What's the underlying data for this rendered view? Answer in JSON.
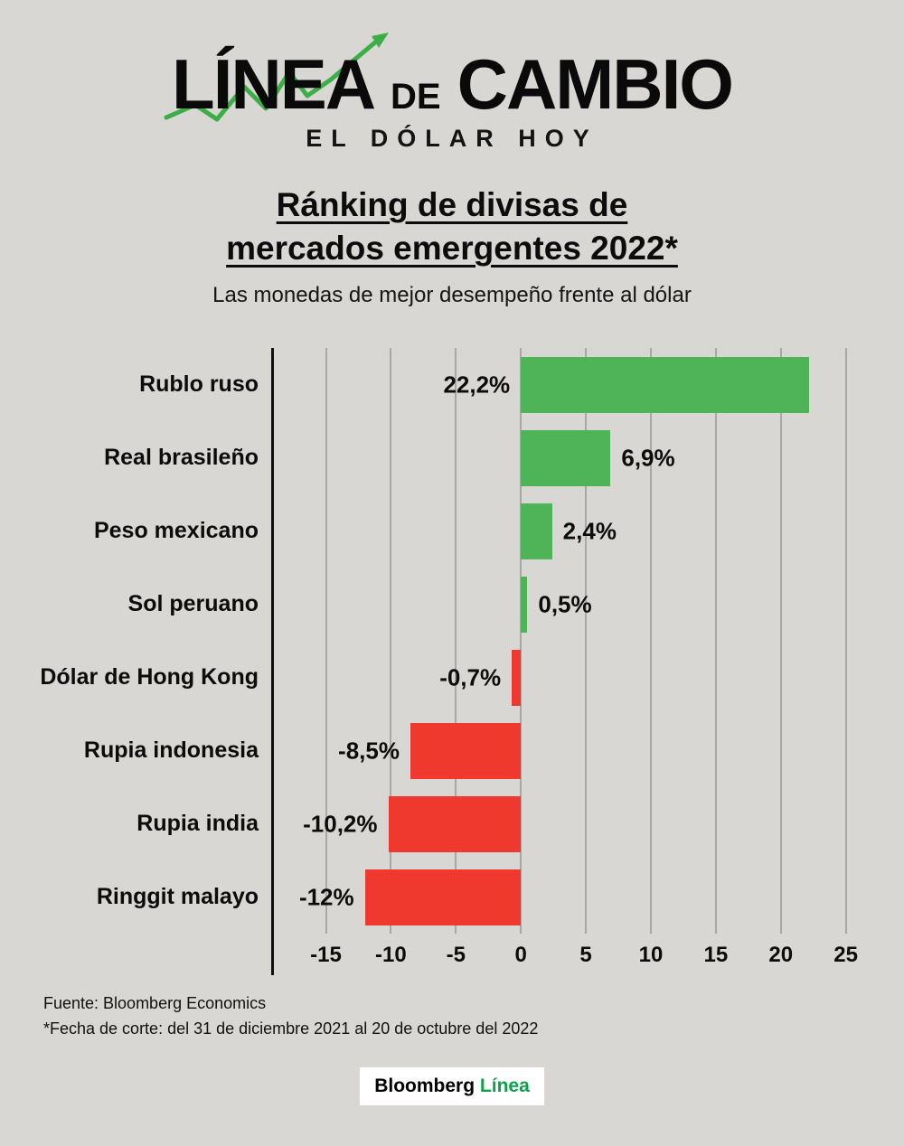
{
  "colors": {
    "background": "#d8d7d4",
    "positive": "#4fb357",
    "negative": "#f0392e",
    "axis": "#101010",
    "grid": "#a8a8a5",
    "logo_green": "#3cae47",
    "badge_green": "#0ca24b"
  },
  "logo": {
    "word1": "LÍNEA",
    "word2": "DE",
    "word3": "CAMBIO",
    "tagline": "EL DÓLAR HOY"
  },
  "title_line1": "Ránking de divisas de",
  "title_line2": "mercados emergentes 2022*",
  "subtitle": "Las monedas de mejor desempeño frente al dólar",
  "chart_data": {
    "type": "bar",
    "orientation": "horizontal",
    "title": "Ránking de divisas de mercados emergentes 2022*",
    "subtitle": "Las monedas de mejor desempeño frente al dólar",
    "categories": [
      "Rublo ruso",
      "Real brasileño",
      "Peso mexicano",
      "Sol peruano",
      "Dólar de Hong Kong",
      "Rupia indonesia",
      "Rupia india",
      "Ringgit malayo"
    ],
    "values": [
      22.2,
      6.9,
      2.4,
      0.5,
      -0.7,
      -8.5,
      -10.2,
      -12
    ],
    "value_labels": [
      "22,2%",
      "6,9%",
      "2,4%",
      "0,5%",
      "-0,7%",
      "-8,5%",
      "-10,2%",
      "-12%"
    ],
    "unit": "%",
    "x_ticks": [
      -15,
      -10,
      -5,
      0,
      5,
      10,
      15,
      20,
      25
    ],
    "xlim": [
      -19,
      26
    ],
    "grid": true,
    "legend": "none"
  },
  "footer": {
    "source": "Fuente: Bloomberg Economics",
    "note": "*Fecha de corte: del 31 de diciembre 2021 al 20 de octubre del 2022"
  },
  "badge": {
    "black": "Bloomberg",
    "green": "Línea"
  }
}
